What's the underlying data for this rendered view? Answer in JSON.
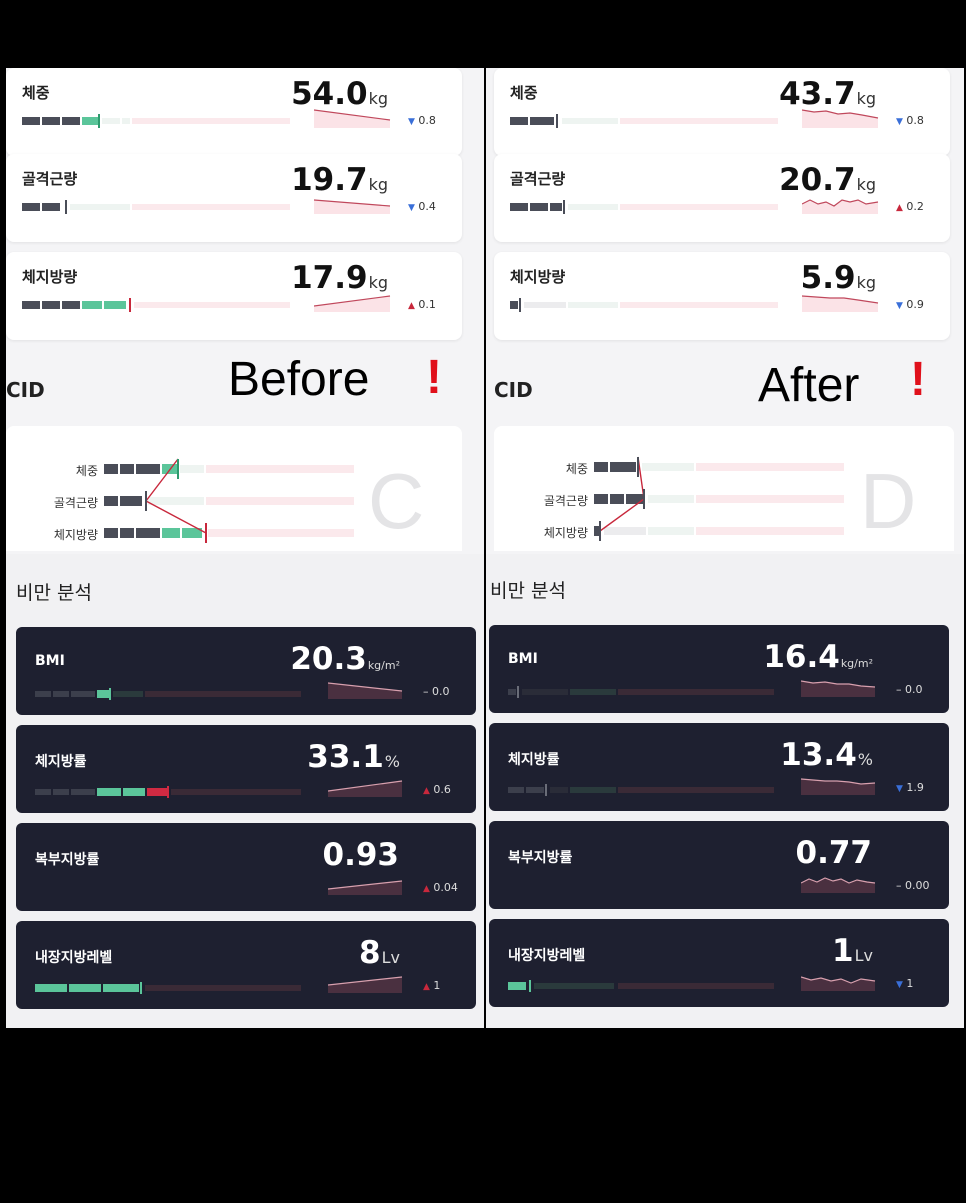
{
  "before": {
    "headline": "Before",
    "exclaim": "!",
    "cid_label": "CID",
    "cid_type": "C",
    "cid_rows": [
      "체중",
      "골격근량",
      "체지방량"
    ],
    "section_title": "비만 분석",
    "metrics": [
      {
        "label": "체중",
        "value": "54.0",
        "unit": "kg",
        "delta": "0.8",
        "trend": "down"
      },
      {
        "label": "골격근량",
        "value": "19.7",
        "unit": "kg",
        "delta": "0.4",
        "trend": "down"
      },
      {
        "label": "체지방량",
        "value": "17.9",
        "unit": "kg",
        "delta": "0.1",
        "trend": "up"
      }
    ],
    "obesity": [
      {
        "label": "BMI",
        "value": "20.3",
        "unit": "kg/m²",
        "delta": "0.0",
        "trend": "flat"
      },
      {
        "label": "체지방률",
        "value": "33.1",
        "unit": "%",
        "delta": "0.6",
        "trend": "up"
      },
      {
        "label": "복부지방률",
        "value": "0.93",
        "unit": "",
        "delta": "0.04",
        "trend": "up"
      },
      {
        "label": "내장지방레벨",
        "value": "8",
        "unit": "Lv",
        "delta": "1",
        "trend": "up"
      }
    ]
  },
  "after": {
    "headline": "After",
    "exclaim": "!",
    "cid_label": "CID",
    "cid_type": "D",
    "cid_rows": [
      "체중",
      "골격근량",
      "체지방량"
    ],
    "section_title": "비만 분석",
    "metrics": [
      {
        "label": "체중",
        "value": "43.7",
        "unit": "kg",
        "delta": "0.8",
        "trend": "down"
      },
      {
        "label": "골격근량",
        "value": "20.7",
        "unit": "kg",
        "delta": "0.2",
        "trend": "up"
      },
      {
        "label": "체지방량",
        "value": "5.9",
        "unit": "kg",
        "delta": "0.9",
        "trend": "down"
      }
    ],
    "obesity": [
      {
        "label": "BMI",
        "value": "16.4",
        "unit": "kg/m²",
        "delta": "0.0",
        "trend": "flat"
      },
      {
        "label": "체지방률",
        "value": "13.4",
        "unit": "%",
        "delta": "1.9",
        "trend": "down"
      },
      {
        "label": "복부지방률",
        "value": "0.77",
        "unit": "",
        "delta": "0.00",
        "trend": "flat"
      },
      {
        "label": "내장지방레벨",
        "value": "1",
        "unit": "Lv",
        "delta": "1",
        "trend": "down"
      }
    ]
  },
  "colors": {
    "dark_card": "#1e2030",
    "up": "#c8283c",
    "down": "#3a6fd8",
    "exclaim": "#e0101b",
    "green": "#5bc59a"
  }
}
